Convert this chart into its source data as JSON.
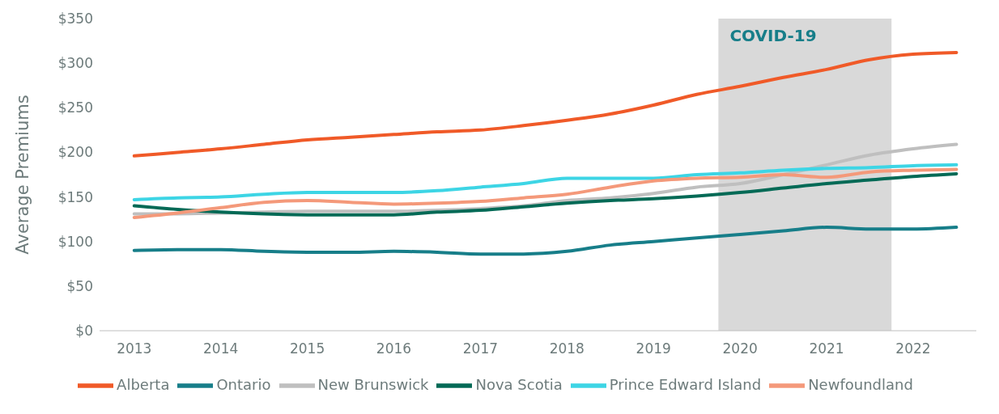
{
  "chart_data": {
    "type": "line",
    "ylabel": "Average Premiums",
    "x": [
      2013,
      2013.5,
      2014,
      2014.5,
      2015,
      2015.5,
      2016,
      2016.5,
      2017,
      2017.5,
      2018,
      2018.5,
      2019,
      2019.5,
      2020,
      2020.5,
      2021,
      2021.5,
      2022,
      2022.5
    ],
    "series": [
      {
        "name": "Alberta",
        "color": "#f05a28",
        "values": [
          196,
          200,
          204,
          209,
          214,
          217,
          220,
          223,
          225,
          230,
          236,
          243,
          253,
          265,
          274,
          284,
          293,
          304,
          310,
          312
        ]
      },
      {
        "name": "Ontario",
        "color": "#177e89",
        "values": [
          90,
          91,
          91,
          89,
          88,
          88,
          89,
          88,
          86,
          86,
          89,
          96,
          100,
          104,
          108,
          112,
          116,
          114,
          114,
          116
        ]
      },
      {
        "name": "New Brunswick",
        "color": "#bfbfbf",
        "values": [
          131,
          131,
          132,
          133,
          134,
          134,
          134,
          135,
          137,
          140,
          146,
          149,
          154,
          161,
          165,
          175,
          186,
          197,
          204,
          209
        ]
      },
      {
        "name": "Nova Scotia",
        "color": "#046a56",
        "values": [
          140,
          136,
          133,
          131,
          130,
          130,
          130,
          133,
          135,
          139,
          143,
          146,
          148,
          151,
          155,
          160,
          165,
          169,
          173,
          176
        ]
      },
      {
        "name": "Prince Edward Island",
        "color": "#3dd5e5",
        "values": [
          147,
          149,
          150,
          153,
          155,
          155,
          155,
          157,
          161,
          165,
          171,
          171,
          171,
          175,
          177,
          180,
          182,
          183,
          185,
          186
        ]
      },
      {
        "name": "Newfoundland",
        "color": "#f4997a",
        "values": [
          127,
          132,
          138,
          144,
          146,
          144,
          142,
          143,
          145,
          149,
          153,
          161,
          168,
          171,
          172,
          175,
          172,
          178,
          180,
          181
        ]
      }
    ],
    "xlim": [
      2012.6,
      2022.73
    ],
    "xticks": [
      2013,
      2014,
      2015,
      2016,
      2017,
      2018,
      2019,
      2020,
      2021,
      2022
    ],
    "ylim": [
      0,
      350
    ],
    "yticks": [
      {
        "value": 0,
        "label": "$0"
      },
      {
        "value": 50,
        "label": "$50"
      },
      {
        "value": 100,
        "label": "$100"
      },
      {
        "value": 150,
        "label": "$150"
      },
      {
        "value": 200,
        "label": "$200"
      },
      {
        "value": 250,
        "label": "$250"
      },
      {
        "value": 300,
        "label": "$300"
      },
      {
        "value": 350,
        "label": "$350"
      }
    ],
    "bands": [
      {
        "axis": "x",
        "from": 2019.75,
        "to": 2021.75,
        "label": "COVID-19",
        "color": "#d9d9d9"
      }
    ],
    "grid": false,
    "legend": "bottom",
    "marker": "none",
    "line_style": "solid"
  }
}
